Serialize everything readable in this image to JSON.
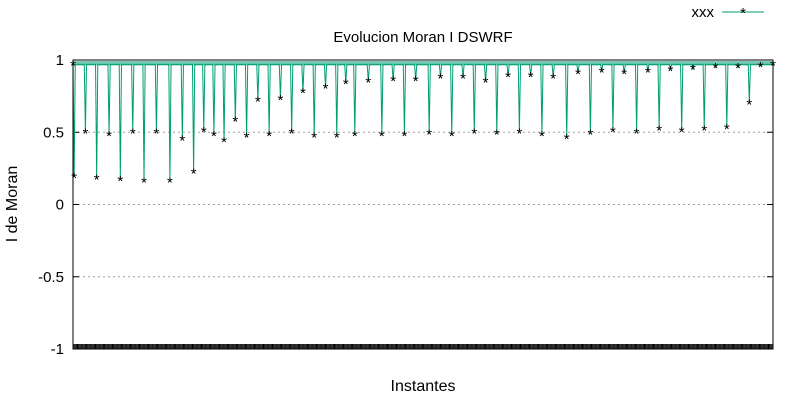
{
  "chart_data": {
    "type": "line",
    "title": "Evolucion Moran I DSWRF",
    "xlabel": "Instantes",
    "ylabel": "I de Moran",
    "ylim": [
      -1,
      1
    ],
    "yticks": [
      -1,
      -0.5,
      0,
      0.5,
      1
    ],
    "ytick_labels": [
      "-1",
      "-0.5",
      "0",
      "0.5",
      "1"
    ],
    "grid": true,
    "legend_position": "top-right",
    "baseline": 0.97,
    "series": [
      {
        "name": "xxx",
        "color": "#009e73",
        "marker": "asterisk",
        "x": [
          0,
          1,
          11,
          21,
          32,
          42,
          53,
          63,
          74,
          86,
          97,
          107,
          116,
          125,
          134,
          144,
          154,
          164,
          174,
          184,
          194,
          204,
          214,
          224,
          234,
          242,
          250,
          262,
          274,
          284,
          294,
          304,
          316,
          326,
          336,
          346,
          356,
          366,
          376,
          386,
          396,
          406,
          416,
          426,
          438,
          448,
          459,
          469,
          479,
          489,
          500,
          510,
          520,
          530,
          540,
          550,
          560,
          570,
          580,
          590,
          600,
          610,
          621
        ],
        "values": [
          0.97,
          0.19,
          0.5,
          0.18,
          0.48,
          0.17,
          0.5,
          0.16,
          0.5,
          0.16,
          0.45,
          0.22,
          0.51,
          0.48,
          0.44,
          0.58,
          0.47,
          0.72,
          0.48,
          0.73,
          0.5,
          0.78,
          0.47,
          0.81,
          0.47,
          0.84,
          0.48,
          0.85,
          0.48,
          0.86,
          0.48,
          0.86,
          0.49,
          0.88,
          0.48,
          0.88,
          0.5,
          0.85,
          0.49,
          0.89,
          0.5,
          0.89,
          0.48,
          0.88,
          0.46,
          0.91,
          0.49,
          0.92,
          0.51,
          0.91,
          0.5,
          0.92,
          0.52,
          0.93,
          0.51,
          0.94,
          0.52,
          0.95,
          0.53,
          0.95,
          0.7,
          0.96,
          0.97
        ]
      }
    ]
  }
}
